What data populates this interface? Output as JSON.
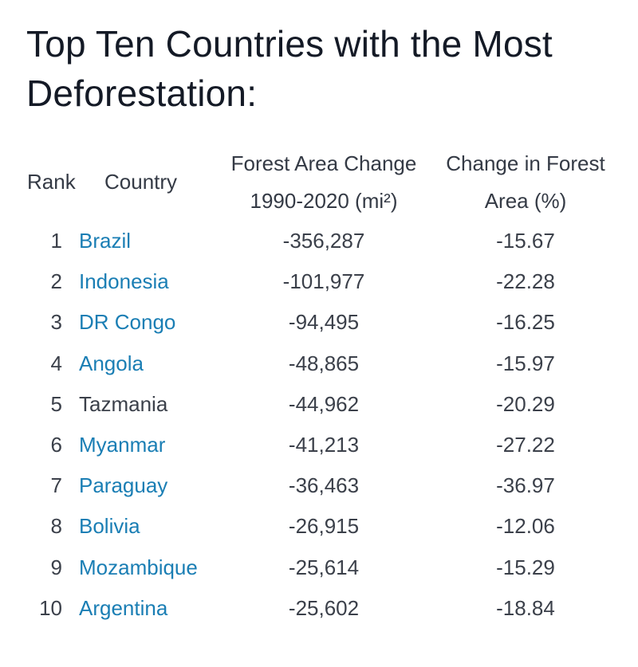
{
  "title": "Top Ten Countries with the Most Deforestation:",
  "headers": {
    "rank": "Rank",
    "country": "Country",
    "change_line1": "Forest Area Change",
    "change_line2": "1990-2020 (mi²)",
    "pct_line1": "Change in Forest",
    "pct_line2": "Area (%)"
  },
  "colors": {
    "link": "#1a7eb4",
    "text": "#3b404a",
    "title": "#141a26"
  },
  "rows": [
    {
      "rank": "1",
      "country": "Brazil",
      "change": "-356,287",
      "pct": "-15.67",
      "link": true
    },
    {
      "rank": "2",
      "country": "Indonesia",
      "change": "-101,977",
      "pct": "-22.28",
      "link": true
    },
    {
      "rank": "3",
      "country": "DR Congo",
      "change": "-94,495",
      "pct": "-16.25",
      "link": true
    },
    {
      "rank": "4",
      "country": "Angola",
      "change": "-48,865",
      "pct": "-15.97",
      "link": true
    },
    {
      "rank": "5",
      "country": "Tazmania",
      "change": "-44,962",
      "pct": "-20.29",
      "link": false
    },
    {
      "rank": "6",
      "country": "Myanmar",
      "change": "-41,213",
      "pct": "-27.22",
      "link": true
    },
    {
      "rank": "7",
      "country": "Paraguay",
      "change": "-36,463",
      "pct": "-36.97",
      "link": true
    },
    {
      "rank": "8",
      "country": "Bolivia",
      "change": "-26,915",
      "pct": "-12.06",
      "link": true
    },
    {
      "rank": "9",
      "country": "Mozambique",
      "change": "-25,614",
      "pct": "-15.29",
      "link": true
    },
    {
      "rank": "10",
      "country": "Argentina",
      "change": "-25,602",
      "pct": "-18.84",
      "link": true
    }
  ]
}
